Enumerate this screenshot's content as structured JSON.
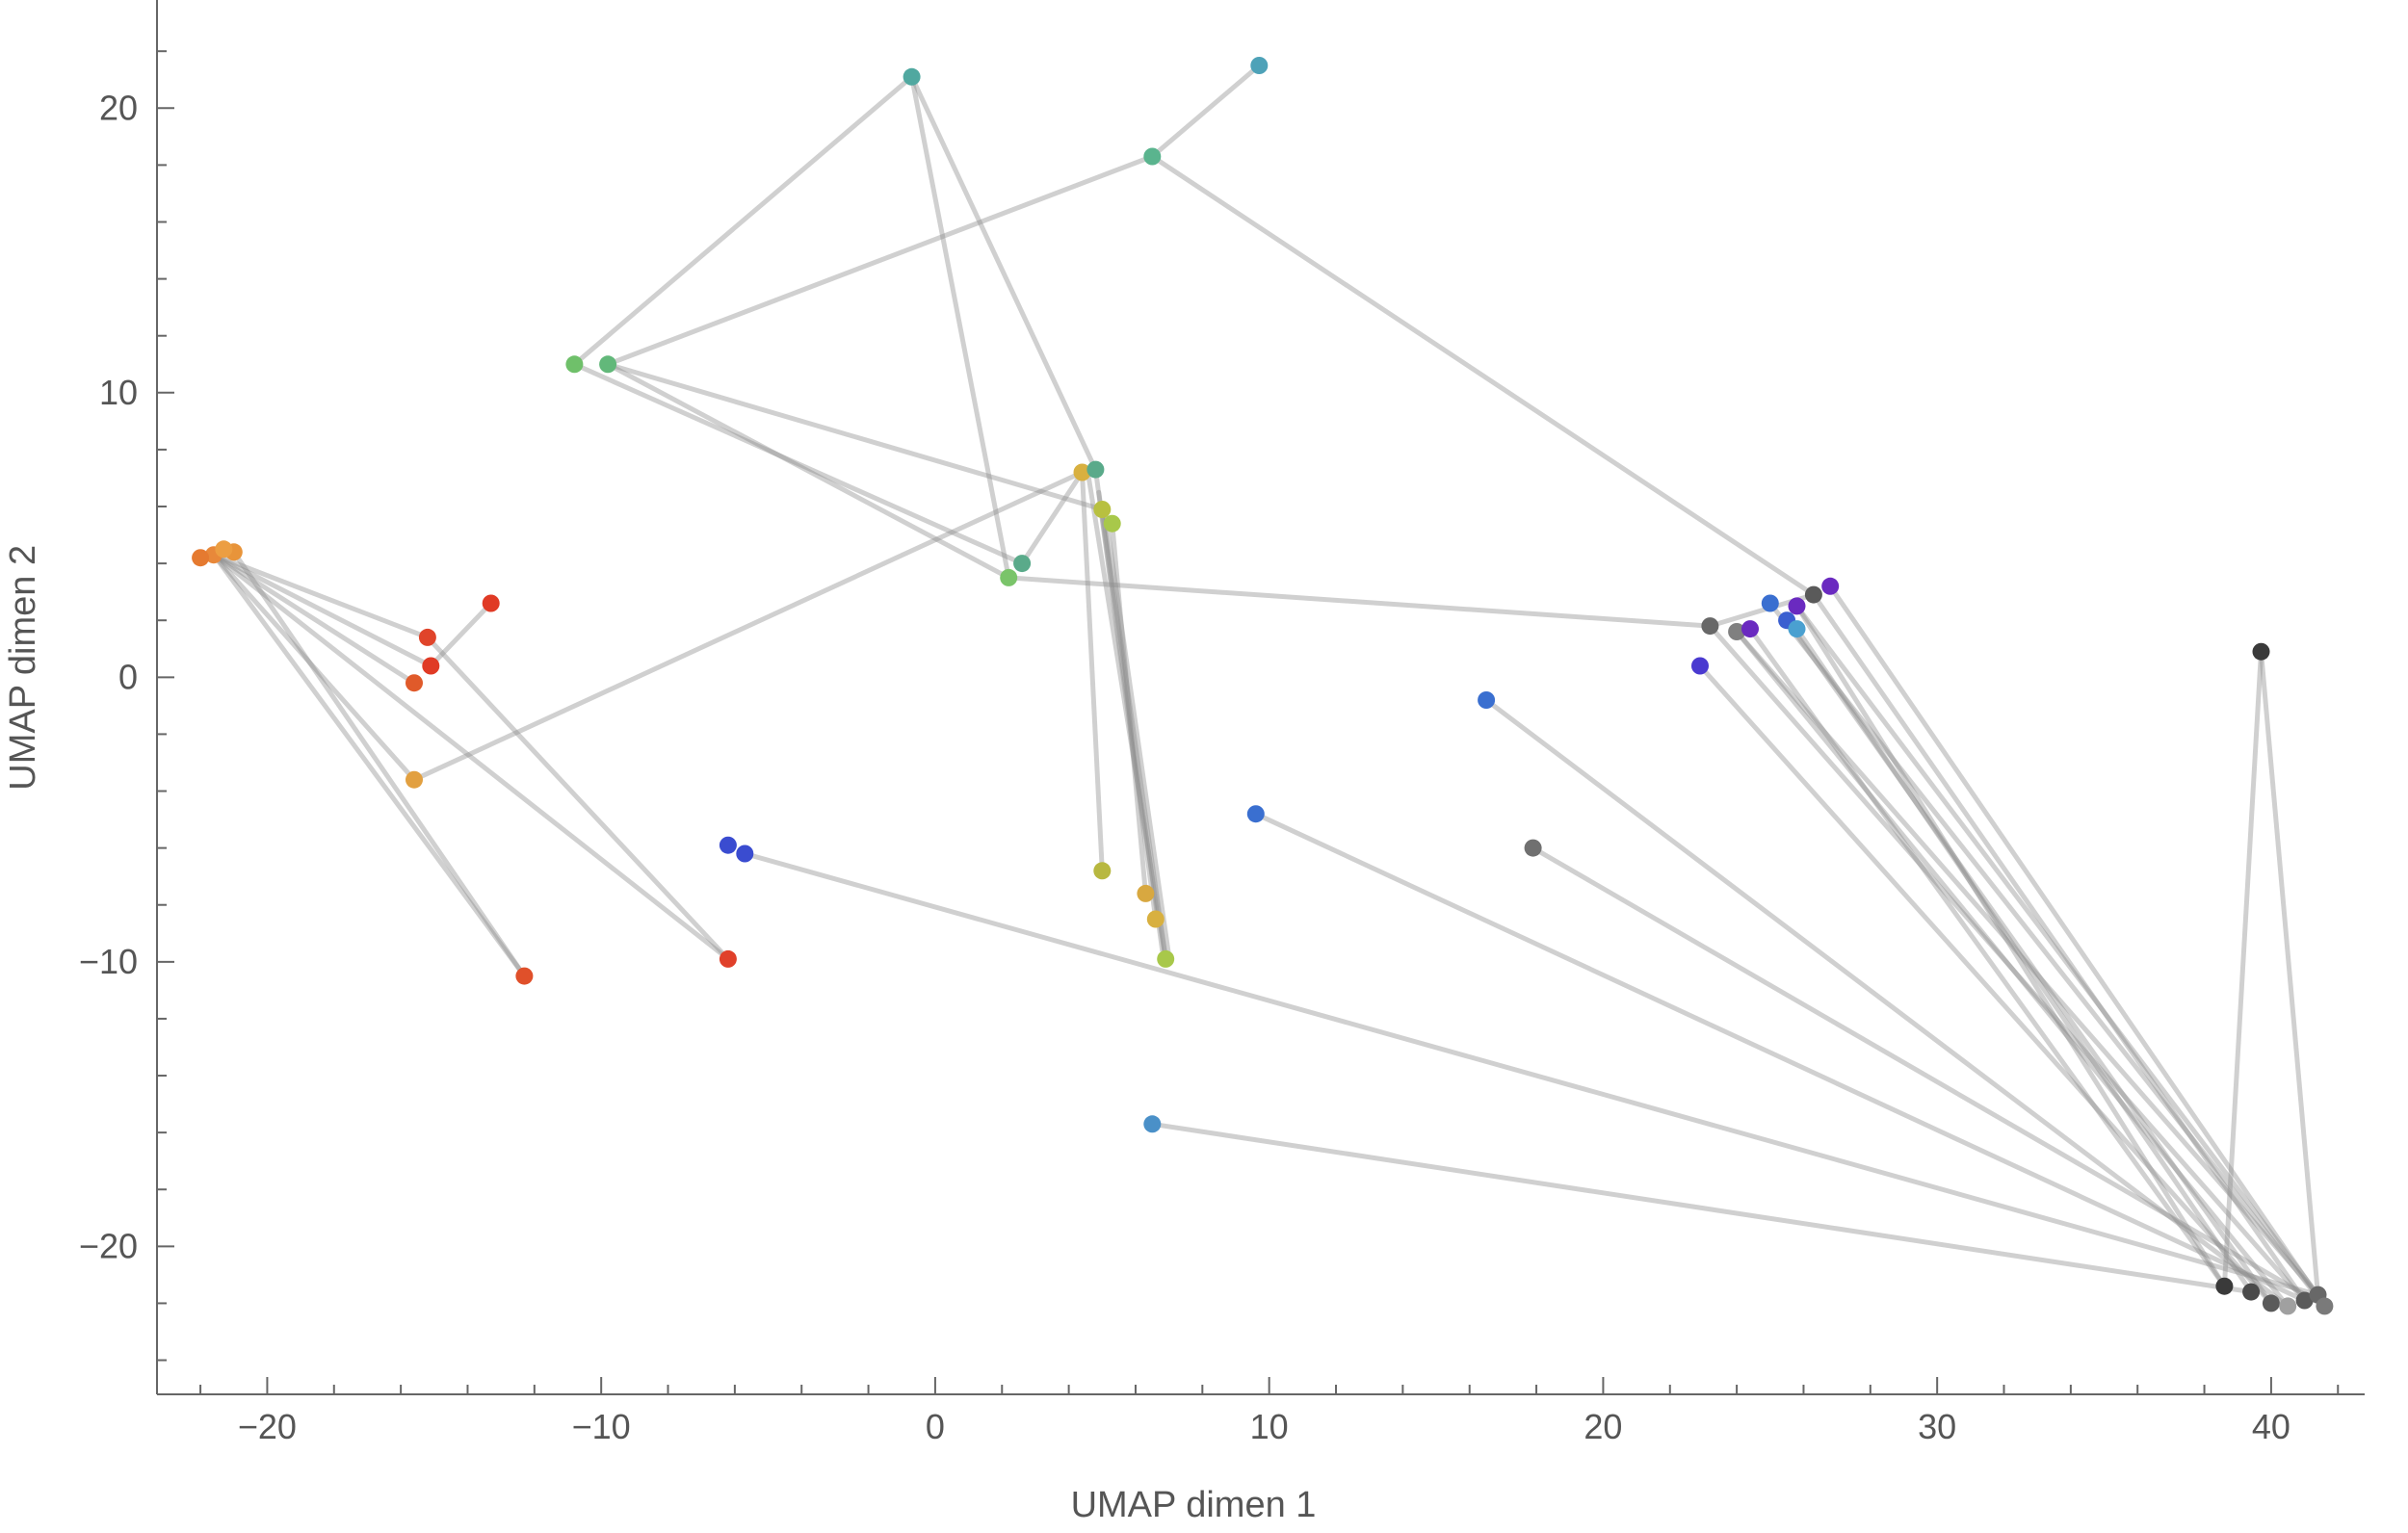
{
  "chart_data": {
    "type": "scatter",
    "title": "",
    "xlabel": "UMAP dimen 1",
    "ylabel": "UMAP dimen 2",
    "xlim": [
      -23.3,
      42.8
    ],
    "ylim": [
      -25.2,
      23.8
    ],
    "x_ticks": [
      -20,
      -10,
      0,
      10,
      20,
      30,
      40
    ],
    "y_ticks": [
      -20,
      -10,
      0,
      10,
      20
    ],
    "x_tick_labels": [
      "−20",
      "−10",
      "0",
      "10",
      "20",
      "30",
      "40"
    ],
    "y_tick_labels": [
      "−20",
      "−10",
      "0",
      "10",
      "20"
    ],
    "x_minor_step": 2,
    "y_minor_step": 2,
    "grid": false,
    "legend": "none",
    "points": [
      {
        "x": -21.6,
        "y": 4.3,
        "color": "#e8883a"
      },
      {
        "x": -21.0,
        "y": 4.4,
        "color": "#e8943a"
      },
      {
        "x": -22.0,
        "y": 4.2,
        "color": "#e57a30"
      },
      {
        "x": -21.3,
        "y": 4.5,
        "color": "#ec9e42"
      },
      {
        "x": -15.2,
        "y": 1.4,
        "color": "#e0442a"
      },
      {
        "x": -15.1,
        "y": 0.4,
        "color": "#e03a25"
      },
      {
        "x": -15.6,
        "y": -0.2,
        "color": "#e05a2a"
      },
      {
        "x": -13.3,
        "y": 2.6,
        "color": "#e03a25"
      },
      {
        "x": -15.6,
        "y": -3.6,
        "color": "#e2a040"
      },
      {
        "x": -12.3,
        "y": -10.5,
        "color": "#e0502a"
      },
      {
        "x": -6.2,
        "y": -9.9,
        "color": "#e0402a"
      },
      {
        "x": -6.2,
        "y": -5.9,
        "color": "#3a4cd0"
      },
      {
        "x": -5.7,
        "y": -6.2,
        "color": "#3a4cd0"
      },
      {
        "x": -10.8,
        "y": 11.0,
        "color": "#6fc06a"
      },
      {
        "x": -9.8,
        "y": 11.0,
        "color": "#62b87a"
      },
      {
        "x": -0.7,
        "y": 21.1,
        "color": "#50a8a0"
      },
      {
        "x": 6.5,
        "y": 18.3,
        "color": "#5ab48e"
      },
      {
        "x": 9.7,
        "y": 21.5,
        "color": "#4ea2b8"
      },
      {
        "x": 2.2,
        "y": 3.5,
        "color": "#7ac46a"
      },
      {
        "x": 2.6,
        "y": 4.0,
        "color": "#5aaa8a"
      },
      {
        "x": 4.4,
        "y": 7.2,
        "color": "#d8b040"
      },
      {
        "x": 4.8,
        "y": 7.3,
        "color": "#5aaa8a"
      },
      {
        "x": 5.0,
        "y": 5.9,
        "color": "#b8c040"
      },
      {
        "x": 5.3,
        "y": 5.4,
        "color": "#a8c84a"
      },
      {
        "x": 5.0,
        "y": -6.8,
        "color": "#b8b840"
      },
      {
        "x": 6.3,
        "y": -7.6,
        "color": "#d8a840"
      },
      {
        "x": 6.6,
        "y": -8.5,
        "color": "#d8b040"
      },
      {
        "x": 6.9,
        "y": -9.9,
        "color": "#a8c84a"
      },
      {
        "x": 9.6,
        "y": -4.8,
        "color": "#3a6fd0"
      },
      {
        "x": 16.5,
        "y": -0.8,
        "color": "#3a6fd0"
      },
      {
        "x": 17.9,
        "y": -6.0,
        "color": "#707070"
      },
      {
        "x": 6.5,
        "y": -15.7,
        "color": "#4a90c8"
      },
      {
        "x": 22.9,
        "y": 0.4,
        "color": "#4a3ad0"
      },
      {
        "x": 23.2,
        "y": 1.8,
        "color": "#686868"
      },
      {
        "x": 24.0,
        "y": 1.6,
        "color": "#808080"
      },
      {
        "x": 24.4,
        "y": 1.7,
        "color": "#6a2ac0"
      },
      {
        "x": 25.0,
        "y": 2.6,
        "color": "#3a6fd0"
      },
      {
        "x": 25.5,
        "y": 2.0,
        "color": "#3a5fd0"
      },
      {
        "x": 25.8,
        "y": 1.7,
        "color": "#4aa0d0"
      },
      {
        "x": 25.8,
        "y": 2.5,
        "color": "#6a2ac0"
      },
      {
        "x": 26.3,
        "y": 2.9,
        "color": "#5a5a5a"
      },
      {
        "x": 26.8,
        "y": 3.2,
        "color": "#6a2ac0"
      },
      {
        "x": 39.7,
        "y": 0.9,
        "color": "#3a3a3a"
      },
      {
        "x": 38.6,
        "y": -21.4,
        "color": "#3a3a3a"
      },
      {
        "x": 39.4,
        "y": -21.6,
        "color": "#4a4a4a"
      },
      {
        "x": 40.0,
        "y": -22.0,
        "color": "#5a5a5a"
      },
      {
        "x": 40.5,
        "y": -22.1,
        "color": "#a0a0a0"
      },
      {
        "x": 41.0,
        "y": -21.9,
        "color": "#5a5a5a"
      },
      {
        "x": 41.4,
        "y": -21.7,
        "color": "#686868"
      },
      {
        "x": 41.6,
        "y": -22.1,
        "color": "#7a7a7a"
      }
    ],
    "edges": [
      [
        -21.6,
        4.3,
        -15.2,
        1.4
      ],
      [
        -21.6,
        4.3,
        -15.1,
        0.4
      ],
      [
        -21.6,
        4.3,
        -15.6,
        -0.2
      ],
      [
        -21.6,
        4.3,
        -15.6,
        -3.6
      ],
      [
        -21.6,
        4.3,
        -12.3,
        -10.5
      ],
      [
        -21.6,
        4.3,
        -6.2,
        -9.9
      ],
      [
        -21.0,
        4.4,
        -12.3,
        -10.5
      ],
      [
        -15.1,
        0.4,
        -13.3,
        2.6
      ],
      [
        -15.2,
        1.4,
        -6.2,
        -9.9
      ],
      [
        -15.6,
        -3.6,
        4.4,
        7.2
      ],
      [
        -10.8,
        11.0,
        -0.7,
        21.1
      ],
      [
        -9.8,
        11.0,
        6.5,
        18.3
      ],
      [
        -9.8,
        11.0,
        2.2,
        3.5
      ],
      [
        -10.8,
        11.0,
        2.6,
        4.0
      ],
      [
        -9.8,
        11.0,
        5.0,
        5.9
      ],
      [
        -0.7,
        21.1,
        2.2,
        3.5
      ],
      [
        -0.7,
        21.1,
        4.8,
        7.3
      ],
      [
        6.5,
        18.3,
        9.7,
        21.5
      ],
      [
        6.5,
        18.3,
        26.3,
        2.9
      ],
      [
        2.2,
        3.5,
        23.2,
        1.8
      ],
      [
        2.6,
        4.0,
        4.4,
        7.2
      ],
      [
        4.4,
        7.2,
        5.0,
        -6.8
      ],
      [
        4.8,
        7.3,
        6.6,
        -8.5
      ],
      [
        5.0,
        5.9,
        6.9,
        -9.9
      ],
      [
        5.3,
        5.4,
        6.3,
        -7.6
      ],
      [
        4.6,
        7.0,
        6.9,
        -9.9
      ],
      [
        4.9,
        6.5,
        6.8,
        -9.6
      ],
      [
        5.1,
        5.7,
        7.0,
        -9.8
      ],
      [
        -5.7,
        -6.2,
        41.4,
        -21.7
      ],
      [
        6.5,
        -15.7,
        39.4,
        -21.6
      ],
      [
        9.6,
        -4.8,
        41.0,
        -21.9
      ],
      [
        16.5,
        -0.8,
        40.5,
        -22.1
      ],
      [
        17.9,
        -6.0,
        41.6,
        -22.1
      ],
      [
        22.9,
        0.4,
        40.0,
        -22.0
      ],
      [
        23.2,
        1.8,
        41.0,
        -21.9
      ],
      [
        24.0,
        1.6,
        41.4,
        -21.7
      ],
      [
        24.4,
        1.7,
        38.6,
        -21.4
      ],
      [
        25.0,
        2.6,
        41.6,
        -22.1
      ],
      [
        25.5,
        2.0,
        40.0,
        -22.0
      ],
      [
        25.8,
        1.7,
        39.4,
        -21.6
      ],
      [
        25.8,
        2.5,
        41.4,
        -21.7
      ],
      [
        26.3,
        2.9,
        41.0,
        -21.9
      ],
      [
        26.8,
        3.2,
        41.6,
        -22.1
      ],
      [
        24.0,
        1.6,
        40.5,
        -22.1
      ],
      [
        25.8,
        2.5,
        38.6,
        -21.4
      ],
      [
        23.2,
        1.8,
        26.3,
        2.9
      ],
      [
        39.7,
        0.9,
        38.6,
        -21.4
      ],
      [
        39.7,
        0.9,
        41.4,
        -21.7
      ]
    ]
  }
}
